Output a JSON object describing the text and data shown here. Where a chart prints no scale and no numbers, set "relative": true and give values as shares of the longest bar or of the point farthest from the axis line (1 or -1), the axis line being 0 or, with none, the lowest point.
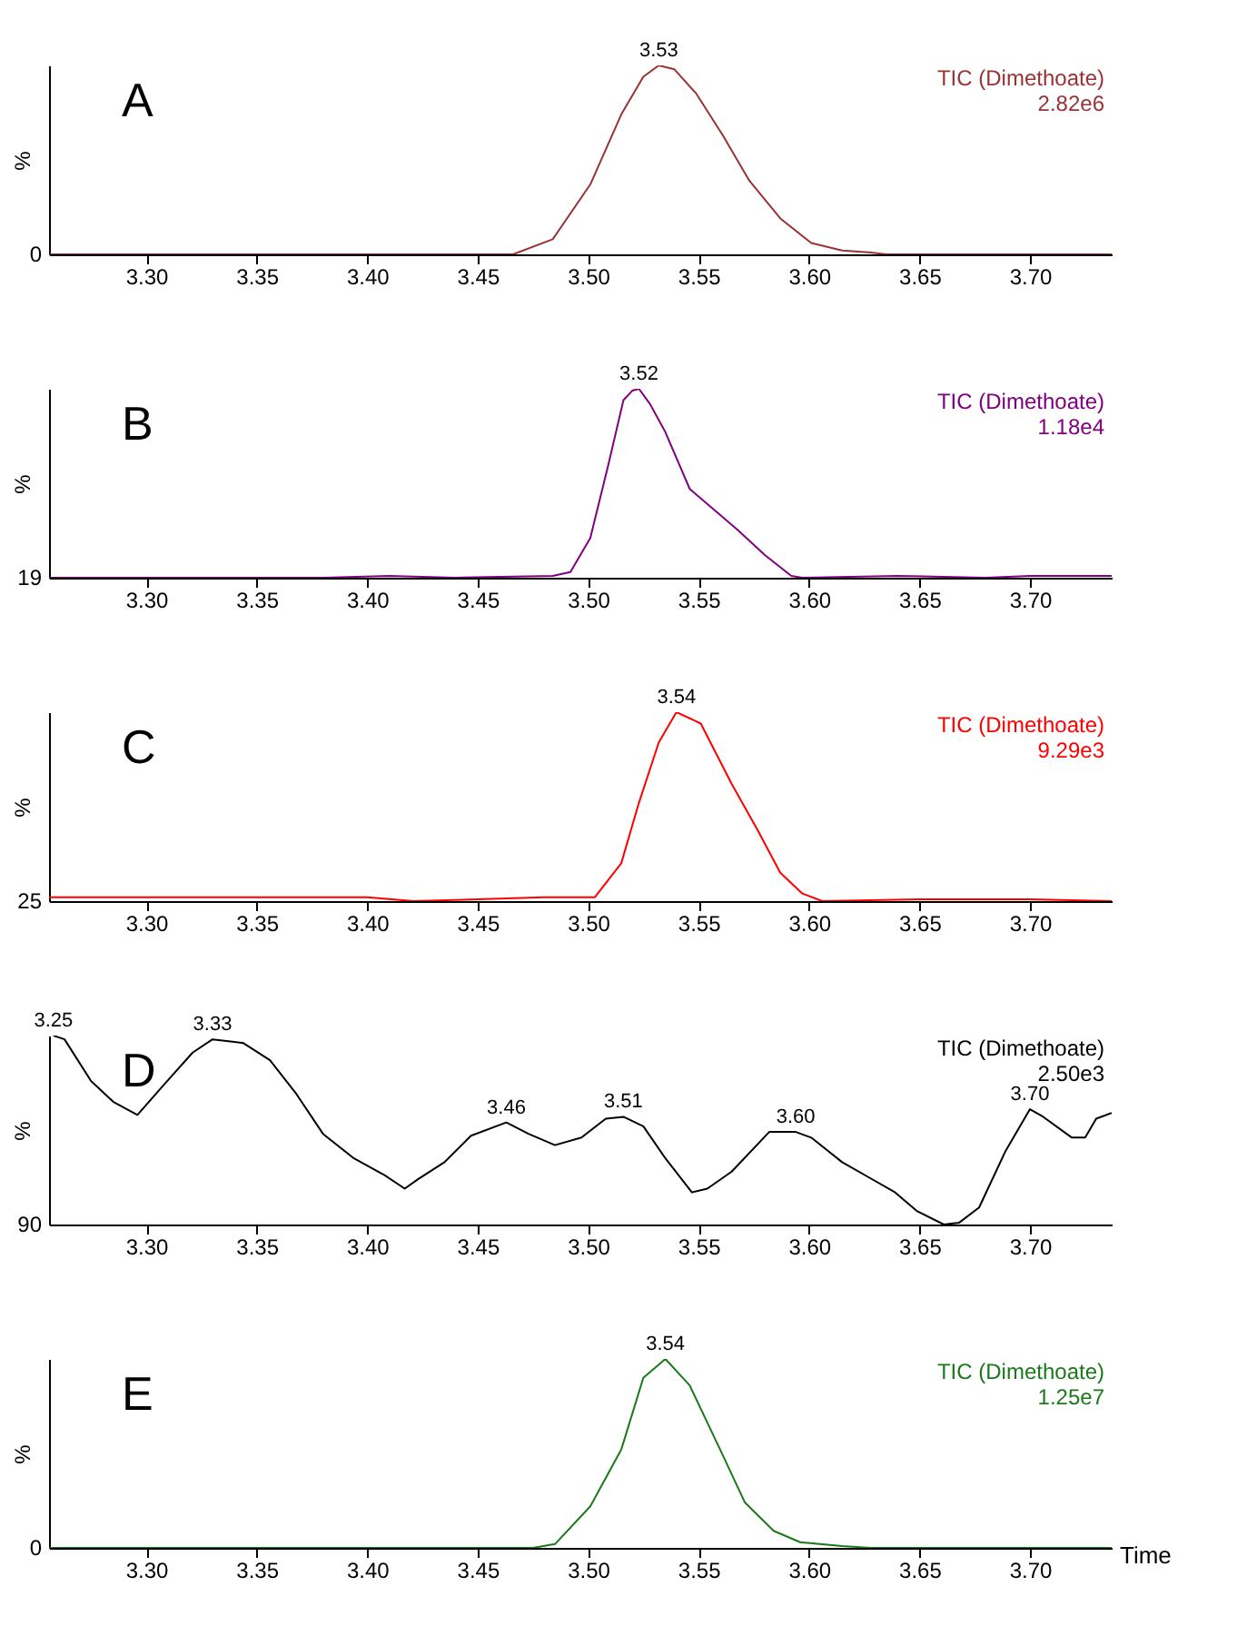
{
  "chart_data": [
    {
      "type": "line",
      "title": "A",
      "ylabel": "%",
      "relative": true,
      "marker": "none",
      "grid": false,
      "legend": false,
      "xlim": [
        3.256,
        3.737
      ],
      "xticks": [
        {
          "value": 3.3,
          "label": "3.30"
        },
        {
          "value": 3.35,
          "label": "3.35"
        },
        {
          "value": 3.4,
          "label": "3.40"
        },
        {
          "value": 3.45,
          "label": "3.45"
        },
        {
          "value": 3.5,
          "label": "3.50"
        },
        {
          "value": 3.55,
          "label": "3.55"
        },
        {
          "value": 3.6,
          "label": "3.60"
        },
        {
          "value": 3.65,
          "label": "3.65"
        },
        {
          "value": 3.7,
          "label": "3.70"
        }
      ],
      "series": [
        {
          "name": "TIC (Dimethoate)",
          "color": "#993333",
          "x": [
            3.256,
            3.466,
            3.484,
            3.501,
            3.515,
            3.525,
            3.532,
            3.539,
            3.549,
            3.561,
            3.573,
            3.587,
            3.601,
            3.615,
            3.628,
            3.635,
            3.737
          ],
          "values": [
            0,
            0,
            0.08,
            0.37,
            0.74,
            0.94,
            1.0,
            0.98,
            0.85,
            0.63,
            0.39,
            0.19,
            0.06,
            0.02,
            0.01,
            0,
            0
          ]
        }
      ],
      "annotations": [
        "2.82e6",
        "0",
        {
          "text": "3.53",
          "x": 3.532,
          "y": 1.0
        }
      ]
    },
    {
      "type": "line",
      "title": "B",
      "ylabel": "%",
      "relative": true,
      "marker": "none",
      "grid": false,
      "legend": false,
      "xlim": [
        3.256,
        3.737
      ],
      "xticks": [
        {
          "value": 3.3,
          "label": "3.30"
        },
        {
          "value": 3.35,
          "label": "3.35"
        },
        {
          "value": 3.4,
          "label": "3.40"
        },
        {
          "value": 3.45,
          "label": "3.45"
        },
        {
          "value": 3.5,
          "label": "3.50"
        },
        {
          "value": 3.55,
          "label": "3.55"
        },
        {
          "value": 3.6,
          "label": "3.60"
        },
        {
          "value": 3.65,
          "label": "3.65"
        },
        {
          "value": 3.7,
          "label": "3.70"
        }
      ],
      "series": [
        {
          "name": "TIC (Dimethoate)",
          "color": "#800080",
          "x": [
            3.256,
            3.38,
            3.41,
            3.44,
            3.484,
            3.492,
            3.501,
            3.509,
            3.516,
            3.52,
            3.523,
            3.528,
            3.535,
            3.546,
            3.559,
            3.568,
            3.58,
            3.592,
            3.597,
            3.64,
            3.68,
            3.7,
            3.737
          ],
          "values": [
            0,
            0,
            0.01,
            0,
            0.01,
            0.03,
            0.21,
            0.59,
            0.94,
            0.99,
            1.0,
            0.92,
            0.77,
            0.47,
            0.34,
            0.25,
            0.12,
            0.01,
            0,
            0.01,
            0,
            0.01,
            0.01
          ]
        }
      ],
      "annotations": [
        "1.18e4",
        "19",
        {
          "text": "3.52",
          "x": 3.523,
          "y": 1.0
        }
      ]
    },
    {
      "type": "line",
      "title": "C",
      "ylabel": "%",
      "relative": true,
      "marker": "none",
      "grid": false,
      "legend": false,
      "xlim": [
        3.256,
        3.737
      ],
      "xticks": [
        {
          "value": 3.3,
          "label": "3.30"
        },
        {
          "value": 3.35,
          "label": "3.35"
        },
        {
          "value": 3.4,
          "label": "3.40"
        },
        {
          "value": 3.45,
          "label": "3.45"
        },
        {
          "value": 3.5,
          "label": "3.50"
        },
        {
          "value": 3.55,
          "label": "3.55"
        },
        {
          "value": 3.6,
          "label": "3.60"
        },
        {
          "value": 3.65,
          "label": "3.65"
        },
        {
          "value": 3.7,
          "label": "3.70"
        }
      ],
      "series": [
        {
          "name": "TIC (Dimethoate)",
          "color": "#ff0000",
          "x": [
            3.256,
            3.3,
            3.35,
            3.4,
            3.421,
            3.45,
            3.48,
            3.503,
            3.515,
            3.523,
            3.532,
            3.54,
            3.551,
            3.565,
            3.577,
            3.587,
            3.597,
            3.606,
            3.65,
            3.7,
            3.737
          ],
          "values": [
            0.02,
            0.02,
            0.02,
            0.02,
            0,
            0.01,
            0.02,
            0.02,
            0.2,
            0.52,
            0.84,
            1.0,
            0.94,
            0.62,
            0.37,
            0.15,
            0.04,
            0,
            0.01,
            0.01,
            0
          ]
        }
      ],
      "annotations": [
        "9.29e3",
        "25",
        {
          "text": "3.54",
          "x": 3.54,
          "y": 1.0
        }
      ]
    },
    {
      "type": "line",
      "title": "D",
      "ylabel": "%",
      "relative": true,
      "marker": "none",
      "grid": false,
      "legend": false,
      "xlim": [
        3.256,
        3.737
      ],
      "xticks": [
        {
          "value": 3.3,
          "label": "3.30"
        },
        {
          "value": 3.35,
          "label": "3.35"
        },
        {
          "value": 3.4,
          "label": "3.40"
        },
        {
          "value": 3.45,
          "label": "3.45"
        },
        {
          "value": 3.5,
          "label": "3.50"
        },
        {
          "value": 3.55,
          "label": "3.55"
        },
        {
          "value": 3.6,
          "label": "3.60"
        },
        {
          "value": 3.65,
          "label": "3.65"
        },
        {
          "value": 3.7,
          "label": "3.70"
        }
      ],
      "series": [
        {
          "name": "TIC (Dimethoate)",
          "color": "#000000",
          "x": [
            3.258,
            3.263,
            3.275,
            3.285,
            3.296,
            3.308,
            3.321,
            3.33,
            3.344,
            3.356,
            3.368,
            3.38,
            3.394,
            3.408,
            3.417,
            3.423,
            3.435,
            3.447,
            3.463,
            3.473,
            3.485,
            3.497,
            3.508,
            3.516,
            3.525,
            3.535,
            3.547,
            3.554,
            3.565,
            3.582,
            3.594,
            3.601,
            3.615,
            3.627,
            3.639,
            3.649,
            3.661,
            3.668,
            3.677,
            3.689,
            3.7,
            3.706,
            3.719,
            3.725,
            3.73,
            3.737
          ],
          "values": [
            1.0,
            0.98,
            0.76,
            0.65,
            0.58,
            0.74,
            0.91,
            0.98,
            0.96,
            0.87,
            0.69,
            0.48,
            0.35,
            0.26,
            0.19,
            0.24,
            0.33,
            0.47,
            0.54,
            0.48,
            0.42,
            0.46,
            0.56,
            0.57,
            0.52,
            0.35,
            0.17,
            0.19,
            0.28,
            0.49,
            0.49,
            0.46,
            0.33,
            0.25,
            0.17,
            0.07,
            0,
            0.01,
            0.09,
            0.39,
            0.61,
            0.57,
            0.46,
            0.46,
            0.56,
            0.59
          ]
        }
      ],
      "annotations": [
        "2.50e3",
        "90",
        {
          "text": "3.25",
          "x": 3.258,
          "y": 1.0
        },
        {
          "text": "3.33",
          "x": 3.33,
          "y": 0.98
        },
        {
          "text": "3.46",
          "x": 3.463,
          "y": 0.54
        },
        {
          "text": "3.51",
          "x": 3.516,
          "y": 0.57
        },
        {
          "text": "3.60",
          "x": 3.594,
          "y": 0.49
        },
        {
          "text": "3.70",
          "x": 3.7,
          "y": 0.61
        }
      ]
    },
    {
      "type": "line",
      "title": "E",
      "ylabel": "%",
      "xlabel": "Time",
      "relative": true,
      "marker": "none",
      "grid": false,
      "legend": false,
      "xlim": [
        3.256,
        3.737
      ],
      "xticks": [
        {
          "value": 3.3,
          "label": "3.30"
        },
        {
          "value": 3.35,
          "label": "3.35"
        },
        {
          "value": 3.4,
          "label": "3.40"
        },
        {
          "value": 3.45,
          "label": "3.45"
        },
        {
          "value": 3.5,
          "label": "3.50"
        },
        {
          "value": 3.55,
          "label": "3.55"
        },
        {
          "value": 3.6,
          "label": "3.60"
        },
        {
          "value": 3.65,
          "label": "3.65"
        },
        {
          "value": 3.7,
          "label": "3.70"
        }
      ],
      "series": [
        {
          "name": "TIC (Dimethoate)",
          "color": "#1a7a1a",
          "x": [
            3.256,
            3.475,
            3.485,
            3.501,
            3.515,
            3.525,
            3.535,
            3.546,
            3.561,
            3.571,
            3.584,
            3.596,
            3.615,
            3.628,
            3.737
          ],
          "values": [
            0,
            0,
            0.02,
            0.22,
            0.52,
            0.9,
            1.0,
            0.86,
            0.49,
            0.24,
            0.09,
            0.03,
            0.01,
            0,
            0
          ]
        }
      ],
      "annotations": [
        "1.25e7",
        "0",
        {
          "text": "3.54",
          "x": 3.535,
          "y": 1.0
        }
      ]
    }
  ]
}
